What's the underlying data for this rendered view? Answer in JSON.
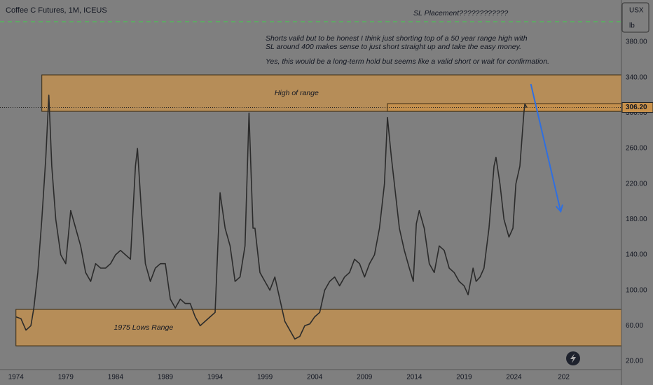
{
  "chart_data": {
    "type": "line",
    "title": "Coffee C Futures, 1M, ICEUS",
    "unit": "USX",
    "unit_sub": "lb",
    "annotations": {
      "sl": "SL Placement????????????",
      "note1": "Shorts valid but to be honest I think just shorting top of a 50 year range high with",
      "note2": "SL around 400 makes sense to just short straight up and take the easy money.",
      "note3": "Yes, this would be a long-term hold but seems like a valid short or wait for confirmation."
    },
    "sl_level": 402.9,
    "last_price": 306.2,
    "last_price_label": "306.20",
    "zones": [
      {
        "label": "High of range",
        "from": 1976.6,
        "low": 301.8,
        "high": 342.9,
        "color": "#c8914b"
      },
      {
        "from": 2011.3,
        "low": 301.8,
        "high": 310.5,
        "color": "#c8914b"
      },
      {
        "label": "1975 Lows Range",
        "from": 1974.0,
        "low": 37.3,
        "high": 78.4,
        "color": "#c8914b"
      }
    ],
    "arrow": {
      "x": [
        2025.7,
        2028.7
      ],
      "values": [
        332.6,
        188.9
      ],
      "color": "#2f6fe0"
    },
    "color": "#2b2b2b",
    "x": [
      1974.0,
      1974.5,
      1975.0,
      1975.5,
      1975.8,
      1976.2,
      1976.6,
      1977.0,
      1977.3,
      1977.6,
      1978.0,
      1978.5,
      1979.0,
      1979.5,
      1980.0,
      1980.5,
      1981.0,
      1981.5,
      1982.0,
      1982.5,
      1983.0,
      1983.5,
      1984.0,
      1984.5,
      1985.0,
      1985.5,
      1986.0,
      1986.2,
      1986.6,
      1987.0,
      1987.5,
      1988.0,
      1988.5,
      1989.0,
      1989.5,
      1990.0,
      1990.5,
      1991.0,
      1991.5,
      1992.0,
      1992.5,
      1993.0,
      1993.5,
      1994.0,
      1994.5,
      1995.0,
      1995.5,
      1996.0,
      1996.5,
      1997.0,
      1997.4,
      1997.8,
      1998.0,
      1998.5,
      1999.0,
      1999.5,
      2000.0,
      2000.5,
      2001.0,
      2001.5,
      2002.0,
      2002.5,
      2003.0,
      2003.5,
      2004.0,
      2004.5,
      2005.0,
      2005.5,
      2006.0,
      2006.5,
      2007.0,
      2007.5,
      2008.0,
      2008.5,
      2009.0,
      2009.5,
      2010.0,
      2010.5,
      2011.0,
      2011.3,
      2011.7,
      2012.0,
      2012.5,
      2013.0,
      2013.5,
      2013.9,
      2014.2,
      2014.5,
      2015.0,
      2015.5,
      2016.0,
      2016.5,
      2017.0,
      2017.5,
      2018.0,
      2018.5,
      2019.0,
      2019.4,
      2019.9,
      2020.2,
      2020.6,
      2021.0,
      2021.5,
      2022.0,
      2022.2,
      2022.6,
      2023.0,
      2023.5,
      2023.9,
      2024.2,
      2024.6,
      2025.0,
      2025.1,
      2025.3
    ],
    "values": [
      70,
      68,
      55,
      60,
      80,
      120,
      180,
      250,
      320,
      240,
      180,
      140,
      130,
      190,
      170,
      150,
      120,
      110,
      130,
      125,
      125,
      130,
      140,
      145,
      140,
      135,
      240,
      260,
      190,
      130,
      110,
      125,
      130,
      130,
      90,
      80,
      90,
      85,
      85,
      70,
      60,
      65,
      70,
      75,
      210,
      170,
      150,
      110,
      115,
      150,
      300,
      170,
      170,
      120,
      110,
      100,
      115,
      90,
      65,
      55,
      45,
      48,
      60,
      62,
      70,
      75,
      100,
      110,
      115,
      105,
      115,
      120,
      135,
      130,
      115,
      130,
      140,
      170,
      220,
      295,
      250,
      220,
      170,
      145,
      125,
      110,
      175,
      190,
      170,
      130,
      120,
      150,
      145,
      125,
      120,
      110,
      105,
      95,
      125,
      110,
      115,
      125,
      170,
      240,
      250,
      220,
      180,
      160,
      170,
      220,
      240,
      300,
      310,
      306.2
    ],
    "xlim": [
      1972.4,
      2034.8
    ],
    "ylim": [
      10.5,
      427.4
    ],
    "xticks": [
      1974,
      1979,
      1984,
      1989,
      1994,
      1999,
      2004,
      2009,
      2014,
      2019,
      2024,
      {
        "value": 2029,
        "label": "202"
      }
    ],
    "yticks": [
      {
        "value": 20,
        "label": "20.00"
      },
      {
        "value": 60,
        "label": "60.00"
      },
      {
        "value": 100,
        "label": "100.00"
      },
      {
        "value": 140,
        "label": "140.00"
      },
      {
        "value": 180,
        "label": "180.00"
      },
      {
        "value": 220,
        "label": "220.00"
      },
      {
        "value": 260,
        "label": "260.00"
      },
      {
        "value": 300,
        "label": "300.00"
      },
      {
        "value": 340,
        "label": "340.00"
      },
      {
        "value": 380,
        "label": "380.00"
      }
    ]
  }
}
